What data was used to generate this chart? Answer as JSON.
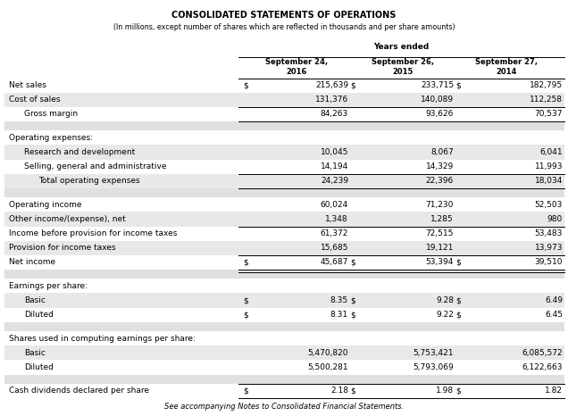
{
  "title": "CONSOLIDATED STATEMENTS OF OPERATIONS",
  "subtitle": "(In millions, except number of shares which are reflected in thousands and per share amounts)",
  "years_ended_label": "Years ended",
  "col_headers": [
    "September 24,\n2016",
    "September 26,\n2015",
    "September 27,\n2014"
  ],
  "footer": "See accompanying Notes to Consolidated Financial Statements.",
  "rows": [
    {
      "label": "Net sales",
      "indent": 0,
      "bold": false,
      "values": [
        "215,639",
        "233,715",
        "182,795"
      ],
      "dollar_sign": true,
      "bg": "white",
      "top_border": true,
      "bottom_border": false,
      "double_bottom": false
    },
    {
      "label": "Cost of sales",
      "indent": 0,
      "bold": false,
      "values": [
        "131,376",
        "140,089",
        "112,258"
      ],
      "dollar_sign": false,
      "bg": "#e8e8e8",
      "top_border": false,
      "bottom_border": false,
      "double_bottom": false
    },
    {
      "label": "Gross margin",
      "indent": 1,
      "bold": false,
      "values": [
        "84,263",
        "93,626",
        "70,537"
      ],
      "dollar_sign": false,
      "bg": "white",
      "top_border": true,
      "bottom_border": true,
      "double_bottom": false
    },
    {
      "label": "",
      "indent": 0,
      "bold": false,
      "values": [
        "",
        "",
        ""
      ],
      "dollar_sign": false,
      "bg": "#e0e0e0",
      "top_border": false,
      "bottom_border": false,
      "double_bottom": false,
      "spacer": true
    },
    {
      "label": "Operating expenses:",
      "indent": 0,
      "bold": false,
      "values": [
        "",
        "",
        ""
      ],
      "dollar_sign": false,
      "bg": "white",
      "top_border": false,
      "bottom_border": false,
      "double_bottom": false
    },
    {
      "label": "Research and development",
      "indent": 1,
      "bold": false,
      "values": [
        "10,045",
        "8,067",
        "6,041"
      ],
      "dollar_sign": false,
      "bg": "#e8e8e8",
      "top_border": false,
      "bottom_border": false,
      "double_bottom": false
    },
    {
      "label": "Selling, general and administrative",
      "indent": 1,
      "bold": false,
      "values": [
        "14,194",
        "14,329",
        "11,993"
      ],
      "dollar_sign": false,
      "bg": "white",
      "top_border": false,
      "bottom_border": false,
      "double_bottom": false
    },
    {
      "label": "Total operating expenses",
      "indent": 2,
      "bold": false,
      "values": [
        "24,239",
        "22,396",
        "18,034"
      ],
      "dollar_sign": false,
      "bg": "#e8e8e8",
      "top_border": true,
      "bottom_border": true,
      "double_bottom": false
    },
    {
      "label": "",
      "indent": 0,
      "bold": false,
      "values": [
        "",
        "",
        ""
      ],
      "dollar_sign": false,
      "bg": "#e0e0e0",
      "top_border": false,
      "bottom_border": false,
      "double_bottom": false,
      "spacer": true
    },
    {
      "label": "Operating income",
      "indent": 0,
      "bold": false,
      "values": [
        "60,024",
        "71,230",
        "52,503"
      ],
      "dollar_sign": false,
      "bg": "white",
      "top_border": false,
      "bottom_border": false,
      "double_bottom": false
    },
    {
      "label": "Other income/(expense), net",
      "indent": 0,
      "bold": false,
      "values": [
        "1,348",
        "1,285",
        "980"
      ],
      "dollar_sign": false,
      "bg": "#e8e8e8",
      "top_border": false,
      "bottom_border": false,
      "double_bottom": false
    },
    {
      "label": "Income before provision for income taxes",
      "indent": 0,
      "bold": false,
      "values": [
        "61,372",
        "72,515",
        "53,483"
      ],
      "dollar_sign": false,
      "bg": "white",
      "top_border": true,
      "bottom_border": false,
      "double_bottom": false
    },
    {
      "label": "Provision for income taxes",
      "indent": 0,
      "bold": false,
      "values": [
        "15,685",
        "19,121",
        "13,973"
      ],
      "dollar_sign": false,
      "bg": "#e8e8e8",
      "top_border": false,
      "bottom_border": false,
      "double_bottom": false
    },
    {
      "label": "Net income",
      "indent": 0,
      "bold": false,
      "values": [
        "45,687",
        "53,394",
        "39,510"
      ],
      "dollar_sign": true,
      "bg": "white",
      "top_border": true,
      "bottom_border": true,
      "double_bottom": true
    },
    {
      "label": "",
      "indent": 0,
      "bold": false,
      "values": [
        "",
        "",
        ""
      ],
      "dollar_sign": false,
      "bg": "#e0e0e0",
      "top_border": false,
      "bottom_border": false,
      "double_bottom": false,
      "spacer": true
    },
    {
      "label": "Earnings per share:",
      "indent": 0,
      "bold": false,
      "values": [
        "",
        "",
        ""
      ],
      "dollar_sign": false,
      "bg": "white",
      "top_border": false,
      "bottom_border": false,
      "double_bottom": false
    },
    {
      "label": "Basic",
      "indent": 1,
      "bold": false,
      "values": [
        "8.35",
        "9.28",
        "6.49"
      ],
      "dollar_sign": true,
      "bg": "#e8e8e8",
      "top_border": false,
      "bottom_border": false,
      "double_bottom": false
    },
    {
      "label": "Diluted",
      "indent": 1,
      "bold": false,
      "values": [
        "8.31",
        "9.22",
        "6.45"
      ],
      "dollar_sign": true,
      "bg": "white",
      "top_border": false,
      "bottom_border": false,
      "double_bottom": false
    },
    {
      "label": "",
      "indent": 0,
      "bold": false,
      "values": [
        "",
        "",
        ""
      ],
      "dollar_sign": false,
      "bg": "#e0e0e0",
      "top_border": false,
      "bottom_border": false,
      "double_bottom": false,
      "spacer": true
    },
    {
      "label": "Shares used in computing earnings per share:",
      "indent": 0,
      "bold": false,
      "values": [
        "",
        "",
        ""
      ],
      "dollar_sign": false,
      "bg": "white",
      "top_border": false,
      "bottom_border": false,
      "double_bottom": false
    },
    {
      "label": "Basic",
      "indent": 1,
      "bold": false,
      "values": [
        "5,470,820",
        "5,753,421",
        "6,085,572"
      ],
      "dollar_sign": false,
      "bg": "#e8e8e8",
      "top_border": false,
      "bottom_border": false,
      "double_bottom": false
    },
    {
      "label": "Diluted",
      "indent": 1,
      "bold": false,
      "values": [
        "5,500,281",
        "5,793,069",
        "6,122,663"
      ],
      "dollar_sign": false,
      "bg": "white",
      "top_border": false,
      "bottom_border": false,
      "double_bottom": false
    },
    {
      "label": "",
      "indent": 0,
      "bold": false,
      "values": [
        "",
        "",
        ""
      ],
      "dollar_sign": false,
      "bg": "#e0e0e0",
      "top_border": false,
      "bottom_border": false,
      "double_bottom": false,
      "spacer": true
    },
    {
      "label": "Cash dividends declared per share",
      "indent": 0,
      "bold": false,
      "values": [
        "2.18",
        "1.98",
        "1.82"
      ],
      "dollar_sign": true,
      "bg": "white",
      "top_border": true,
      "bottom_border": true,
      "double_bottom": false
    }
  ],
  "fig_width": 6.36,
  "fig_height": 4.66,
  "dpi": 100
}
